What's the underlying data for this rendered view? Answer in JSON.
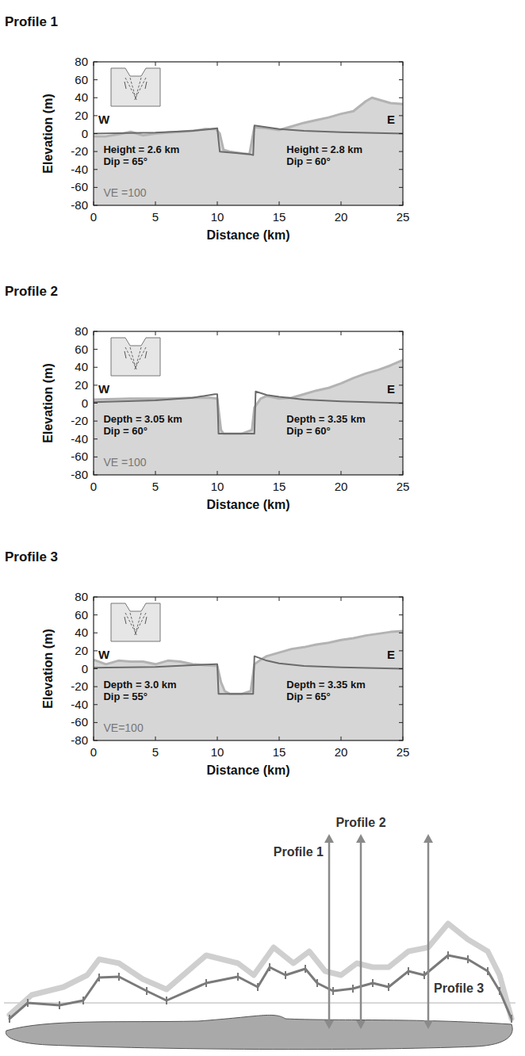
{
  "chart_data": [
    {
      "type": "line",
      "title": "Profile 1",
      "x_label": "Distance (km)",
      "y_label": "Elevation (m)",
      "xlim": [
        0,
        25
      ],
      "ylim": [
        -80,
        80
      ],
      "xticks": [
        0,
        5,
        10,
        15,
        20,
        25
      ],
      "yticks": [
        -80,
        -60,
        -40,
        -20,
        0,
        20,
        40,
        60,
        80
      ],
      "series": [
        {
          "type": "area",
          "color": "#d6d6d6",
          "x": [
            0,
            1,
            2,
            3,
            4,
            5,
            6,
            7,
            8,
            9,
            9.9,
            10.2,
            10.5,
            11,
            12,
            12.6,
            12.9,
            13,
            14,
            15,
            16,
            17,
            18,
            19,
            20,
            21,
            22,
            22.5,
            23,
            24,
            25
          ],
          "values": [
            -3,
            -3,
            -1,
            2,
            -2,
            0,
            1,
            2,
            3,
            5,
            5,
            0,
            -18,
            -20,
            -22,
            -23,
            0,
            7,
            6,
            4,
            8,
            12,
            15,
            18,
            22,
            25,
            36,
            40,
            38,
            34,
            33
          ]
        },
        {
          "type": "line",
          "color": "#6b6b6b",
          "x": [
            0,
            5,
            8,
            9.5,
            10,
            10.2,
            12.6,
            12.9,
            13,
            14,
            15,
            17,
            20,
            25
          ],
          "values": [
            0,
            1,
            3,
            5,
            6,
            -20,
            -23,
            -24,
            9,
            7,
            5,
            3,
            1.5,
            0
          ]
        }
      ],
      "west_label": "W",
      "east_label": "E",
      "left_fault": [
        "Height = 2.6 km",
        "Dip = 65°"
      ],
      "right_fault": [
        "Height = 2.8 km",
        "Dip = 60°"
      ],
      "ve_label": "VE =100"
    },
    {
      "type": "line",
      "title": "Profile 2",
      "x_label": "Distance (km)",
      "y_label": "Elevation (m)",
      "xlim": [
        0,
        25
      ],
      "ylim": [
        -80,
        80
      ],
      "xticks": [
        0,
        5,
        10,
        15,
        20,
        25
      ],
      "yticks": [
        -80,
        -60,
        -40,
        -20,
        0,
        20,
        40,
        60,
        80
      ],
      "series": [
        {
          "type": "area",
          "color": "#d6d6d6",
          "x": [
            0,
            3,
            6,
            8,
            9.5,
            10,
            10.3,
            10.5,
            12,
            12.8,
            13,
            13.5,
            14,
            15,
            16,
            17,
            18,
            19,
            20,
            21,
            22,
            23,
            24,
            25
          ],
          "values": [
            4,
            5,
            5,
            6,
            6,
            5,
            -30,
            -34,
            -34,
            -30,
            -5,
            5,
            8,
            5,
            6,
            10,
            14,
            17,
            22,
            28,
            33,
            37,
            42,
            48
          ]
        },
        {
          "type": "line",
          "color": "#6b6b6b",
          "x": [
            0,
            5,
            8,
            9.8,
            10,
            10.1,
            13,
            13.1,
            14,
            15,
            17,
            20,
            25
          ],
          "values": [
            1,
            3,
            6,
            10,
            10,
            -34,
            -34,
            13,
            9,
            7,
            4,
            2,
            0
          ]
        }
      ],
      "west_label": "W",
      "east_label": "E",
      "left_fault": [
        "Depth = 3.05 km",
        "Dip = 60°"
      ],
      "right_fault": [
        "Depth = 3.35 km",
        "Dip = 60°"
      ],
      "ve_label": "VE =100"
    },
    {
      "type": "line",
      "title": "Profile 3",
      "x_label": "Distance (km)",
      "y_label": "Elevation (m)",
      "xlim": [
        0,
        25
      ],
      "ylim": [
        -80,
        80
      ],
      "xticks": [
        0,
        5,
        10,
        15,
        20,
        25
      ],
      "yticks": [
        -80,
        -60,
        -40,
        -20,
        0,
        20,
        40,
        60,
        80
      ],
      "series": [
        {
          "type": "area",
          "color": "#d6d6d6",
          "x": [
            0,
            1,
            2,
            3,
            4,
            5,
            6,
            7,
            8,
            9,
            10,
            10.3,
            10.6,
            11,
            12,
            12.7,
            13,
            13.5,
            14,
            15,
            16,
            17,
            18,
            19,
            20,
            21,
            22,
            23,
            24,
            25
          ],
          "values": [
            10,
            5,
            9,
            8,
            8,
            5,
            9,
            8,
            5,
            4,
            3,
            -15,
            -25,
            -28,
            -28,
            -25,
            5,
            10,
            14,
            18,
            22,
            24,
            27,
            29,
            32,
            34,
            37,
            39,
            41,
            42
          ]
        },
        {
          "type": "line",
          "color": "#6b6b6b",
          "x": [
            0,
            5,
            8,
            9.9,
            10,
            10.1,
            12.9,
            13,
            14,
            15,
            17,
            20,
            25
          ],
          "values": [
            1,
            2,
            4,
            5,
            5,
            -28,
            -28,
            14,
            9,
            6,
            3,
            1.5,
            0
          ]
        }
      ],
      "west_label": "W",
      "east_label": "E",
      "left_fault": [
        "Depth = 3.0 km",
        "Dip = 55°"
      ],
      "right_fault": [
        "Depth = 3.35 km",
        "Dip = 65°"
      ],
      "ve_label": "VE=100"
    },
    {
      "type": "line",
      "tick_labels": false,
      "xlim": [
        0,
        645
      ],
      "ylim": [
        0,
        130
      ],
      "series": [
        {
          "type": "line",
          "color": "#cfcfcf",
          "x": [
            7,
            35,
            75,
            105,
            120,
            145,
            175,
            205,
            255,
            295,
            315,
            340,
            365,
            385,
            405,
            425,
            445,
            465,
            485,
            510,
            535,
            560,
            585,
            610,
            625,
            640
          ],
          "values": [
            10,
            35,
            45,
            60,
            80,
            75,
            55,
            42,
            85,
            75,
            60,
            95,
            75,
            90,
            65,
            60,
            75,
            70,
            70,
            90,
            95,
            125,
            105,
            90,
            60,
            5
          ]
        },
        {
          "type": "line",
          "color": "#7a7a7a",
          "marker": "tick",
          "x": [
            7,
            30,
            70,
            100,
            120,
            145,
            180,
            205,
            255,
            295,
            320,
            335,
            355,
            380,
            395,
            415,
            440,
            465,
            485,
            510,
            530,
            560,
            585,
            610,
            625,
            640
          ],
          "values": [
            5,
            25,
            22,
            28,
            57,
            58,
            40,
            28,
            50,
            58,
            45,
            70,
            60,
            68,
            50,
            40,
            43,
            50,
            45,
            65,
            60,
            85,
            80,
            65,
            40,
            5
          ]
        }
      ],
      "profile_markers": [
        {
          "label": "Profile 1",
          "x": 410
        },
        {
          "label": "Profile 2",
          "x": 450
        },
        {
          "label": "Profile 3",
          "x": 535
        }
      ]
    }
  ]
}
